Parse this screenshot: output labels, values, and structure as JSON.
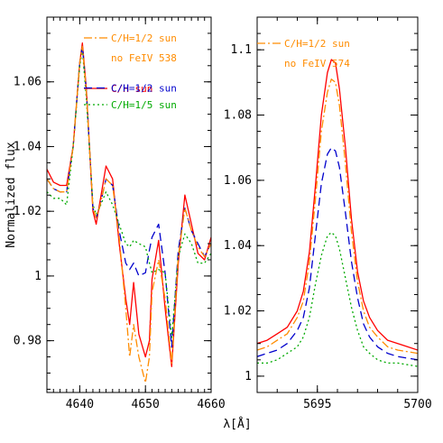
{
  "figure": {
    "ylabel": "Normalized flux",
    "xlabel": "λ[Å]"
  },
  "chart_data": [
    {
      "type": "line",
      "xlim": [
        4635,
        4660
      ],
      "ylim": [
        0.964,
        1.08
      ],
      "xticks": [
        4640,
        4650,
        4660
      ],
      "xtick_labels": [
        "4640",
        "4650",
        "4660"
      ],
      "yticks": [
        0.98,
        1,
        1.02,
        1.04,
        1.06
      ],
      "ytick_labels": [
        "0.98",
        "1",
        "1.02",
        "1.04",
        "1.06"
      ],
      "grid": false,
      "legend": [
        {
          "label": "C/H=1/2 sun",
          "color": "#ff8c00",
          "dash": "dashdot",
          "series": 3
        },
        {
          "label": "no FeIV 538",
          "color": "#ff8c00",
          "dash": "none",
          "series": -1
        },
        {
          "label": "C/H sun",
          "color": "#ff0000",
          "dash": "solid",
          "series": 0
        },
        {
          "label": "C/H=1/2 sun",
          "color": "#0000cc",
          "dash": "dashed",
          "series": 1
        },
        {
          "label": "C/H=1/5 sun",
          "color": "#00aa00",
          "dash": "dotted",
          "series": 2
        }
      ],
      "x": [
        4635,
        4636,
        4637,
        4638,
        4639,
        4640,
        4640.4,
        4641,
        4642,
        4642.5,
        4643,
        4644,
        4645,
        4646,
        4647,
        4647.6,
        4648.2,
        4649,
        4650,
        4650.6,
        4651,
        4652,
        4653,
        4654,
        4655,
        4656,
        4657,
        4658,
        4659,
        4660
      ],
      "series": [
        {
          "name": "C/H sun",
          "color": "#ff0000",
          "dash": "solid",
          "values": [
            1.033,
            1.029,
            1.028,
            1.028,
            1.04,
            1.066,
            1.072,
            1.058,
            1.02,
            1.016,
            1.022,
            1.034,
            1.03,
            1.01,
            0.993,
            0.985,
            0.998,
            0.982,
            0.975,
            0.98,
            0.999,
            1.011,
            0.99,
            0.972,
            1.004,
            1.025,
            1.016,
            1.007,
            1.005,
            1.012
          ]
        },
        {
          "name": "C/H=1/2 sun",
          "color": "#0000cc",
          "dash": "dashed",
          "values": [
            1.03,
            1.027,
            1.026,
            1.026,
            1.04,
            1.066,
            1.071,
            1.057,
            1.021,
            1.018,
            1.021,
            1.03,
            1.028,
            1.014,
            1.004,
            1.002,
            1.004,
            1.0,
            1.001,
            1.008,
            1.012,
            1.016,
            1.001,
            0.978,
            1.008,
            1.021,
            1.014,
            1.01,
            1.006,
            1.01
          ]
        },
        {
          "name": "C/H=1/5 sun",
          "color": "#00aa00",
          "dash": "dotted",
          "values": [
            1.026,
            1.024,
            1.024,
            1.022,
            1.04,
            1.065,
            1.07,
            1.055,
            1.022,
            1.019,
            1.021,
            1.026,
            1.022,
            1.016,
            1.01,
            1.009,
            1.011,
            1.01,
            1.009,
            1.004,
            1.001,
            1.002,
            1.001,
            0.981,
            1.006,
            1.013,
            1.01,
            1.004,
            1.004,
            1.007
          ]
        },
        {
          "name": "C/H=1/2 sun, no FeIV 538",
          "color": "#ff8c00",
          "dash": "dashdot",
          "values": [
            1.03,
            1.027,
            1.026,
            1.026,
            1.04,
            1.066,
            1.071,
            1.057,
            1.021,
            1.018,
            1.021,
            1.03,
            1.028,
            1.012,
            0.99,
            0.975,
            0.985,
            0.975,
            0.967,
            0.975,
            0.995,
            1.005,
            0.993,
            0.973,
            1.006,
            1.021,
            1.014,
            1.009,
            1.006,
            1.01
          ]
        }
      ]
    },
    {
      "type": "line",
      "xlim": [
        5692,
        5700
      ],
      "ylim": [
        0.995,
        1.11
      ],
      "xticks": [
        5695,
        5700
      ],
      "xtick_labels": [
        "5695",
        "5700"
      ],
      "yticks": [
        1,
        1.02,
        1.04,
        1.06,
        1.08,
        1.1
      ],
      "ytick_labels": [
        "1",
        "1.02",
        "1.04",
        "1.06",
        "1.08",
        "1.1"
      ],
      "grid": false,
      "legend": [
        {
          "label": "C/H=1/2 sun",
          "color": "#ff8c00",
          "dash": "dashdot",
          "series": 3
        },
        {
          "label": "no FeIV 574",
          "color": "#ff8c00",
          "dash": "none",
          "series": -1
        }
      ],
      "x": [
        5692,
        5692.5,
        5693,
        5693.5,
        5694,
        5694.3,
        5694.6,
        5694.9,
        5695.2,
        5695.5,
        5695.7,
        5695.9,
        5696.1,
        5696.4,
        5696.7,
        5697,
        5697.3,
        5697.6,
        5698,
        5698.5,
        5699,
        5700
      ],
      "series": [
        {
          "name": "C/H sun",
          "color": "#ff0000",
          "dash": "solid",
          "values": [
            1.01,
            1.011,
            1.013,
            1.015,
            1.02,
            1.026,
            1.038,
            1.058,
            1.08,
            1.093,
            1.097,
            1.096,
            1.088,
            1.07,
            1.048,
            1.032,
            1.023,
            1.018,
            1.014,
            1.011,
            1.01,
            1.008
          ]
        },
        {
          "name": "C/H=1/2 sun",
          "color": "#0000cc",
          "dash": "dashed",
          "values": [
            1.006,
            1.007,
            1.008,
            1.01,
            1.014,
            1.018,
            1.027,
            1.043,
            1.059,
            1.068,
            1.07,
            1.069,
            1.064,
            1.05,
            1.035,
            1.024,
            1.016,
            1.012,
            1.009,
            1.007,
            1.006,
            1.005
          ]
        },
        {
          "name": "C/H=1/5 sun",
          "color": "#00aa00",
          "dash": "dotted",
          "values": [
            1.004,
            1.004,
            1.005,
            1.007,
            1.009,
            1.012,
            1.018,
            1.028,
            1.037,
            1.043,
            1.044,
            1.043,
            1.039,
            1.03,
            1.021,
            1.014,
            1.009,
            1.007,
            1.005,
            1.004,
            1.004,
            1.003
          ]
        },
        {
          "name": "C/H=1/2 sun, no FeIV 574",
          "color": "#ff8c00",
          "dash": "dashdot",
          "values": [
            1.008,
            1.009,
            1.011,
            1.013,
            1.018,
            1.023,
            1.035,
            1.054,
            1.075,
            1.087,
            1.091,
            1.09,
            1.083,
            1.065,
            1.044,
            1.029,
            1.02,
            1.015,
            1.012,
            1.009,
            1.008,
            1.007
          ]
        }
      ]
    }
  ]
}
